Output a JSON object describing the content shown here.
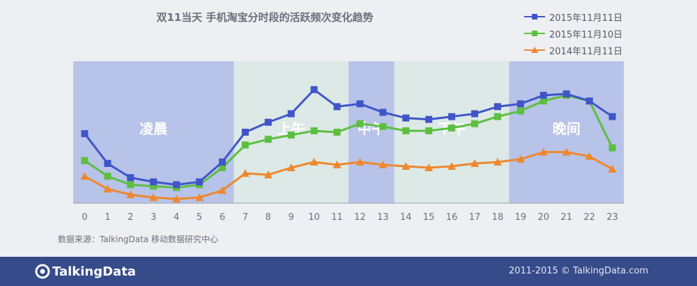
{
  "chart_data": {
    "type": "line",
    "title": "双11当天 手机淘宝分时段的活跃频次变化趋势",
    "categories": [
      "0",
      "1",
      "2",
      "3",
      "4",
      "5",
      "6",
      "7",
      "8",
      "9",
      "10",
      "11",
      "12",
      "13",
      "14",
      "15",
      "16",
      "17",
      "18",
      "19",
      "20",
      "21",
      "22",
      "23"
    ],
    "series": [
      {
        "name": "2015年11月11日",
        "color": "#3f55c8",
        "marker": "square",
        "values": [
          49,
          28,
          18,
          15,
          13,
          15,
          29,
          50,
          57,
          63,
          80,
          68,
          70,
          64,
          60,
          59,
          61,
          63,
          68,
          70,
          76,
          77,
          72,
          61
        ]
      },
      {
        "name": "2015年11月10日",
        "color": "#5cbf3f",
        "marker": "square",
        "values": [
          30,
          19,
          13,
          12,
          11,
          13,
          25,
          41,
          45,
          48,
          51,
          50,
          56,
          54,
          51,
          51,
          53,
          56,
          61,
          65,
          72,
          76,
          72,
          39
        ]
      },
      {
        "name": "2014年11月11日",
        "color": "#f0872c",
        "marker": "triangle",
        "values": [
          19,
          10,
          6,
          4,
          3,
          4,
          9,
          21,
          20,
          25,
          29,
          27,
          29,
          27,
          26,
          25,
          26,
          28,
          29,
          31,
          36,
          36,
          33,
          24
        ]
      }
    ],
    "periods": [
      {
        "label": "凌晨",
        "from": -0.5,
        "to": 6.5,
        "color": "#b7c3e8"
      },
      {
        "label": "上午",
        "from": 6.5,
        "to": 11.5,
        "color": "#dce9e6"
      },
      {
        "label": "中午",
        "from": 11.5,
        "to": 13.5,
        "color": "#b7c3e8"
      },
      {
        "label": "下午",
        "from": 13.5,
        "to": 18.5,
        "color": "#dce9e6"
      },
      {
        "label": "晚间",
        "from": 18.5,
        "to": 23.5,
        "color": "#b7c3e8"
      }
    ],
    "ylim": [
      0,
      100
    ],
    "legend": "top-right",
    "grid": false
  },
  "source": "数据来源：TalkingData 移动数据研究中心",
  "footer": {
    "brand": "TalkingData",
    "copyright": "2011-2015 © TalkingData.com"
  }
}
